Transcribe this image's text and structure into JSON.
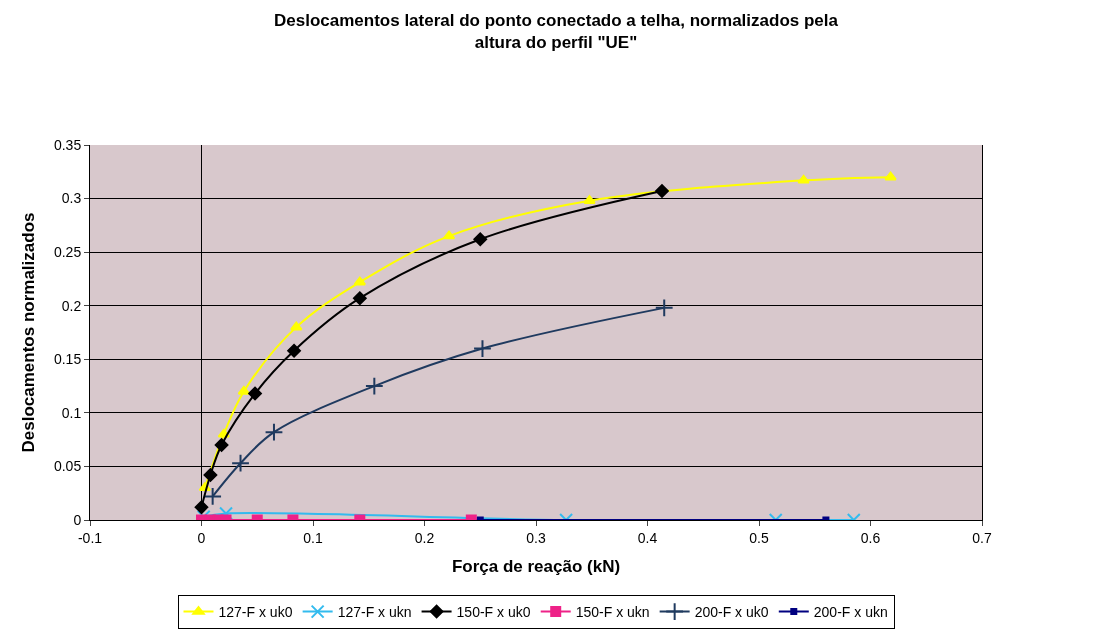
{
  "chart_data": {
    "type": "line",
    "title": "Deslocamentos lateral do ponto conectado a telha, normalizados pela\naltura do perfil \"UE\"",
    "xlabel": "Força de reação (kN)",
    "ylabel": "Deslocamentos normalizados",
    "xlim": [
      -0.1,
      0.7
    ],
    "xticks": [
      -0.1,
      0,
      0.1,
      0.2,
      0.3,
      0.4,
      0.5,
      0.6,
      0.7
    ],
    "ylim": [
      0,
      0.35
    ],
    "yticks": [
      0,
      0.05,
      0.1,
      0.15,
      0.2,
      0.25,
      0.3,
      0.35
    ],
    "grid": "y",
    "legend": "bottom",
    "series": [
      {
        "name": "127-F x uk0",
        "color": "#ffff00",
        "marker": "triangle",
        "x": [
          0.003,
          0.02,
          0.038,
          0.085,
          0.142,
          0.222,
          0.348,
          0.54,
          0.618
        ],
        "values": [
          0.03,
          0.08,
          0.12,
          0.18,
          0.222,
          0.265,
          0.298,
          0.317,
          0.32
        ]
      },
      {
        "name": "127-F x ukn",
        "color": "#33bbee",
        "marker": "cross",
        "x": [
          0.002,
          0.022,
          0.327,
          0.515,
          0.585
        ],
        "values": [
          0.003,
          0.006,
          0,
          0,
          0
        ]
      },
      {
        "name": "150-F x uk0",
        "color": "#000000",
        "marker": "diamond",
        "x": [
          0,
          0.008,
          0.018,
          0.048,
          0.083,
          0.142,
          0.25,
          0.413
        ],
        "values": [
          0.012,
          0.042,
          0.07,
          0.118,
          0.158,
          0.207,
          0.262,
          0.307
        ]
      },
      {
        "name": "150-F x ukn",
        "color": "#ee2288",
        "marker": "square",
        "x": [
          0,
          0.008,
          0.015,
          0.022,
          0.05,
          0.082,
          0.142,
          0.242
        ],
        "values": [
          0,
          0,
          0,
          0,
          0,
          0,
          0,
          0
        ]
      },
      {
        "name": "200-F x uk0",
        "color": "#1f3a5f",
        "marker": "cross",
        "x": [
          0.01,
          0.035,
          0.065,
          0.155,
          0.252,
          0.415
        ],
        "values": [
          0.022,
          0.053,
          0.082,
          0.125,
          0.16,
          0.198
        ]
      },
      {
        "name": "200-F x ukn",
        "color": "#000080",
        "marker": "square",
        "x": [
          0,
          0.05,
          0.25,
          0.56
        ],
        "values": [
          0,
          0,
          0,
          0
        ]
      }
    ]
  }
}
